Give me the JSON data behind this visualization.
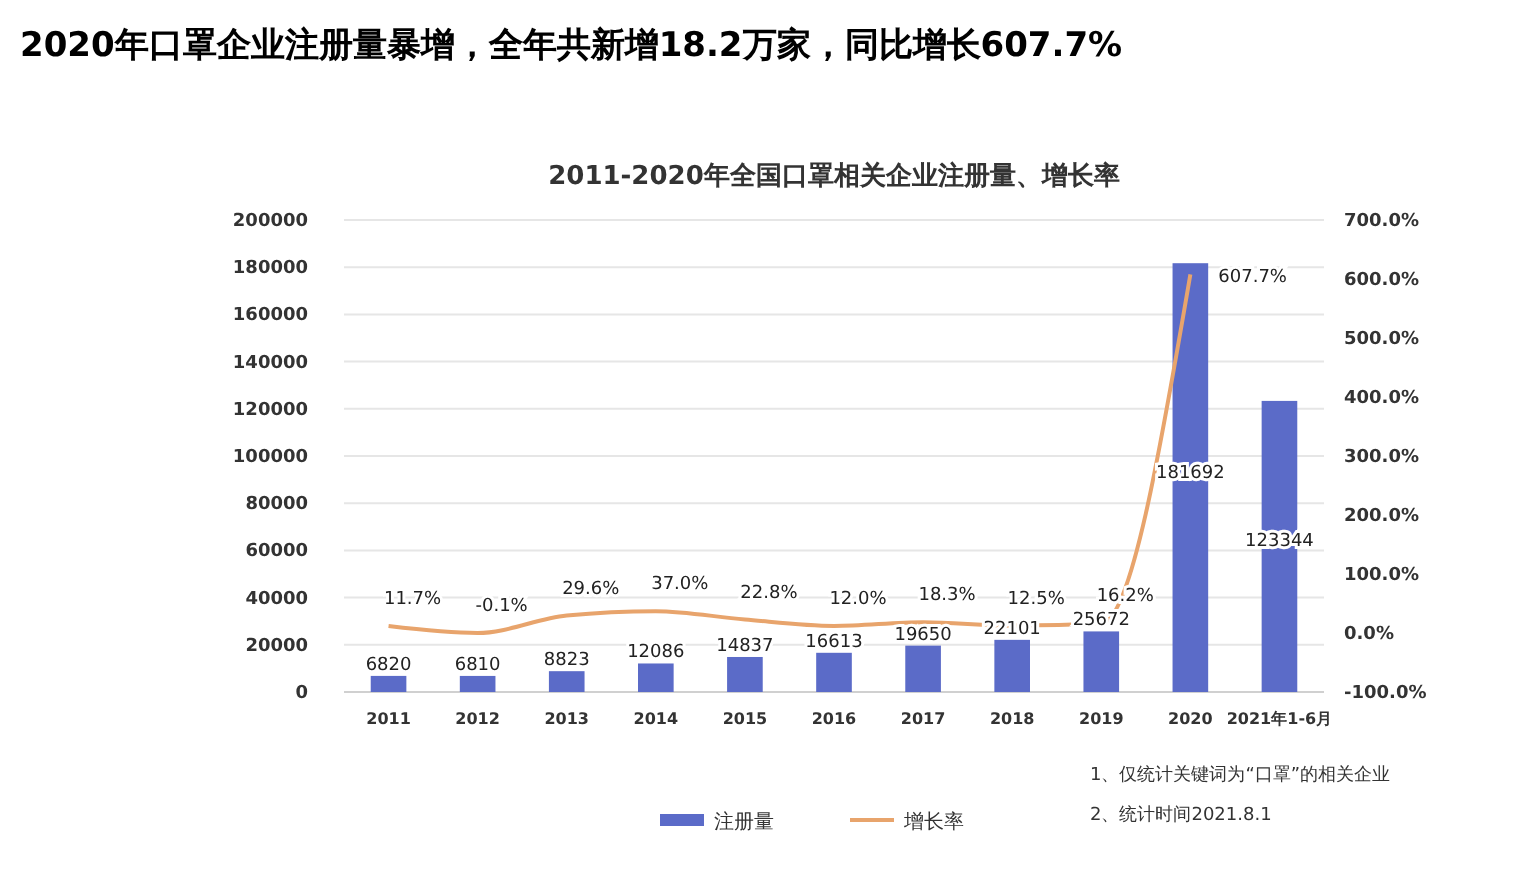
{
  "chart_data": {
    "type": "bar",
    "title": "2020年口罩企业注册量暴增，全年共新增18.2万家，同比增长607.7%",
    "subtitle": "2011-2020年全国口罩相关企业注册量、增长率",
    "categories": [
      "2011",
      "2012",
      "2013",
      "2014",
      "2015",
      "2016",
      "2017",
      "2018",
      "2019",
      "2020",
      "2021年1-6月"
    ],
    "series": [
      {
        "name": "注册量",
        "color": "#5b6bc8",
        "values": [
          6820,
          6810,
          8823,
          12086,
          14837,
          16613,
          19650,
          22101,
          25672,
          181692,
          123344
        ],
        "value_labels": [
          "6820",
          "6810",
          "8823",
          "12086",
          "14837",
          "16613",
          "19650",
          "22101",
          "25672",
          "181692",
          "123344"
        ]
      },
      {
        "name": "增长率",
        "type": "line",
        "axis": "y2",
        "color": "#e8a46c",
        "values": [
          11.7,
          -0.1,
          29.6,
          37.0,
          22.8,
          12.0,
          18.3,
          12.5,
          16.2,
          607.7,
          null
        ],
        "value_labels": [
          "11.7%",
          "-0.1%",
          "29.6%",
          "37.0%",
          "22.8%",
          "12.0%",
          "18.3%",
          "12.5%",
          "16.2%",
          "607.7%",
          null
        ]
      }
    ],
    "ylim": [
      0,
      200000
    ],
    "yticks": [
      0,
      20000,
      40000,
      60000,
      80000,
      100000,
      120000,
      140000,
      160000,
      180000,
      200000
    ],
    "y2lim": [
      -100,
      700
    ],
    "y2ticks": [
      {
        "value": -100,
        "label": "-100.0%"
      },
      {
        "value": 0,
        "label": "0.0%"
      },
      {
        "value": 100,
        "label": "100.0%"
      },
      {
        "value": 200,
        "label": "200.0%"
      },
      {
        "value": 300,
        "label": "300.0%"
      },
      {
        "value": 400,
        "label": "400.0%"
      },
      {
        "value": 500,
        "label": "500.0%"
      },
      {
        "value": 600,
        "label": "600.0%"
      },
      {
        "value": 700,
        "label": "700.0%"
      }
    ],
    "grid": "y",
    "legend": "bottom",
    "annotations": [
      "1、仅统计关键词为“口罩”的相关企业",
      "2、统计时间2021.8.1"
    ]
  }
}
